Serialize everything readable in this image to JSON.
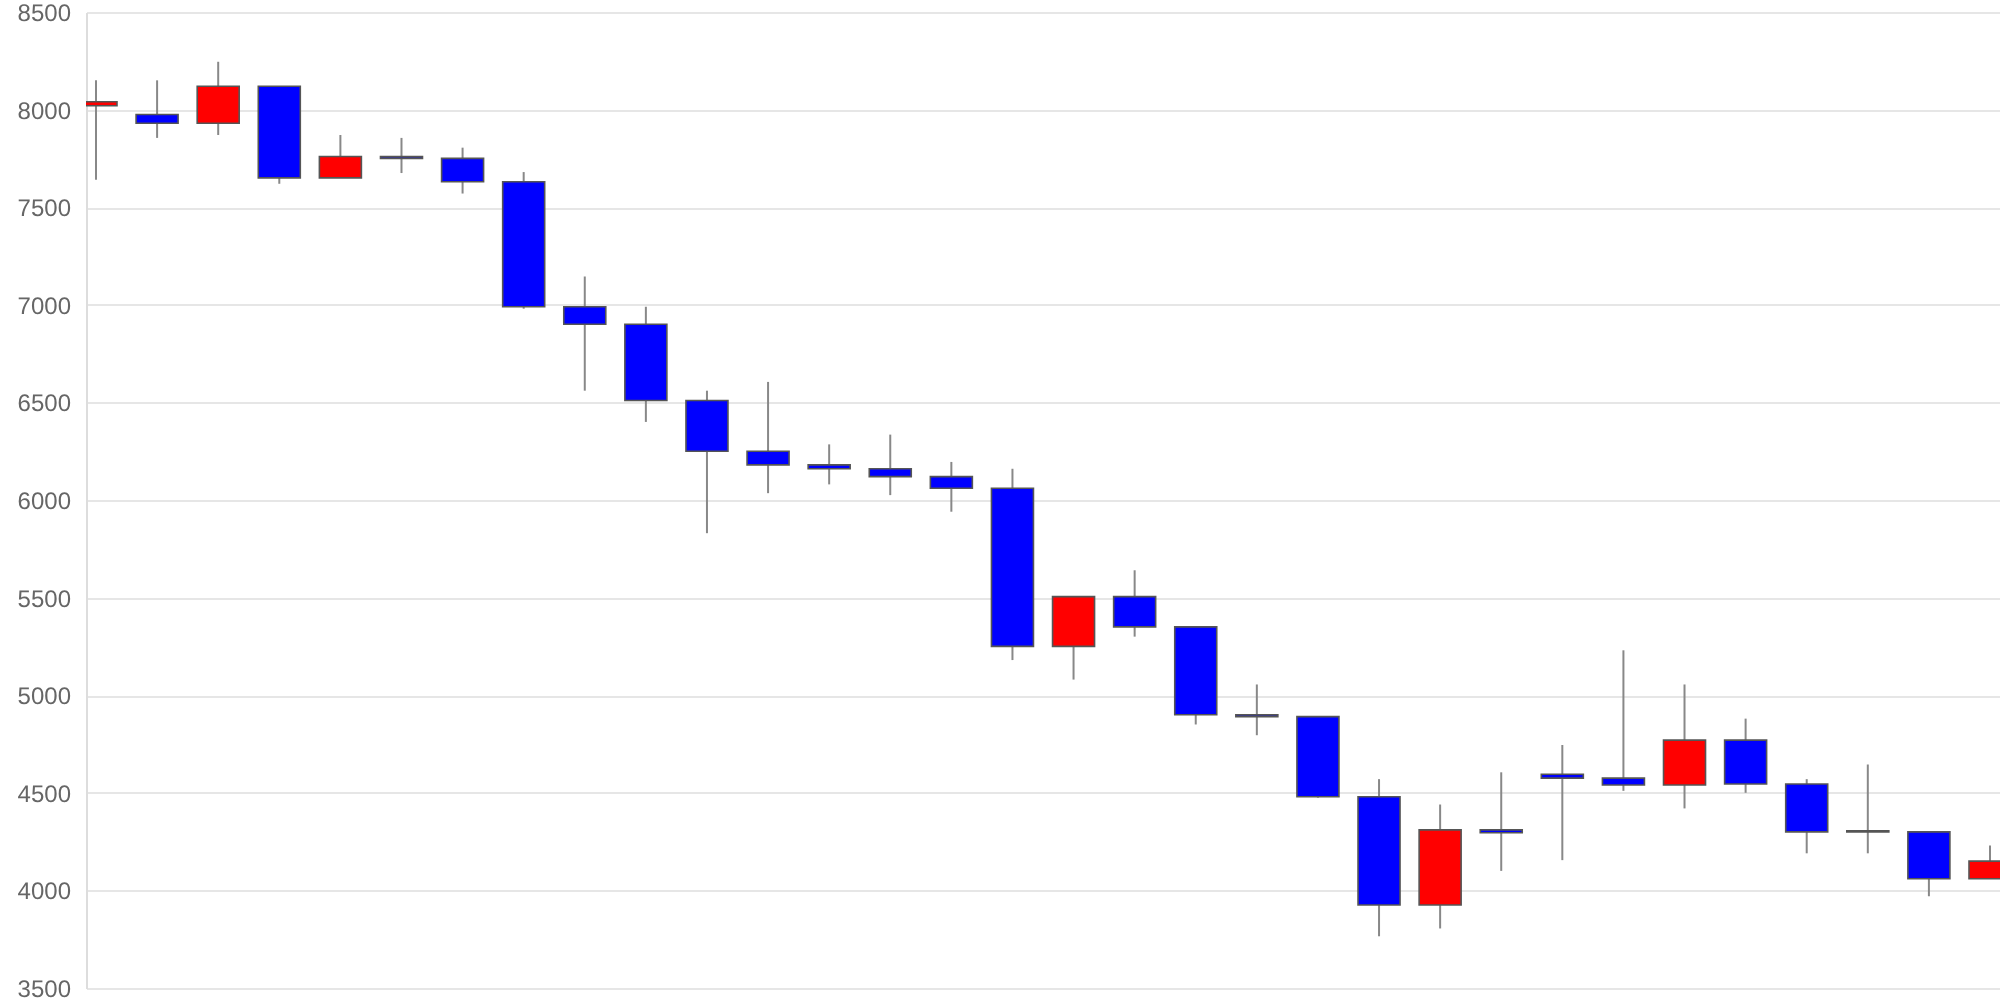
{
  "chart_data": {
    "type": "candlestick",
    "categories": [
      null,
      null,
      null,
      null,
      null,
      null,
      null,
      null,
      null,
      null,
      null,
      null,
      null,
      null,
      null,
      null,
      null,
      null,
      null,
      null,
      null,
      null,
      null,
      null,
      null,
      null,
      null,
      null,
      null,
      null,
      null,
      null
    ],
    "ohlc": [
      [
        8020,
        8150,
        7640,
        8040
      ],
      [
        7975,
        8150,
        7855,
        7930
      ],
      [
        7930,
        8245,
        7870,
        8120
      ],
      [
        8120,
        8120,
        7620,
        7650
      ],
      [
        7650,
        7870,
        7650,
        7760
      ],
      [
        7760,
        7855,
        7675,
        7750
      ],
      [
        7750,
        7805,
        7570,
        7630
      ],
      [
        7630,
        7680,
        6980,
        6990
      ],
      [
        6990,
        7145,
        6560,
        6900
      ],
      [
        6900,
        6990,
        6400,
        6510
      ],
      [
        6510,
        6560,
        5830,
        6250
      ],
      [
        6250,
        6605,
        6035,
        6180
      ],
      [
        6180,
        6285,
        6080,
        6160
      ],
      [
        6160,
        6335,
        6025,
        6120
      ],
      [
        6120,
        6195,
        5940,
        6060
      ],
      [
        6060,
        6160,
        5180,
        5250
      ],
      [
        5250,
        5505,
        5080,
        5505
      ],
      [
        5505,
        5640,
        5300,
        5350
      ],
      [
        5350,
        5350,
        4850,
        4900
      ],
      [
        4900,
        5055,
        4795,
        4890
      ],
      [
        4890,
        4890,
        4475,
        4480
      ],
      [
        4480,
        4570,
        3765,
        3925
      ],
      [
        3925,
        4440,
        3805,
        4310
      ],
      [
        4310,
        4605,
        4100,
        4295
      ],
      [
        4595,
        4745,
        4155,
        4575
      ],
      [
        4575,
        5230,
        4510,
        4540
      ],
      [
        4540,
        5055,
        4420,
        4770
      ],
      [
        4770,
        4880,
        4500,
        4545
      ],
      [
        4545,
        4570,
        4190,
        4300
      ],
      [
        4305,
        4645,
        4190,
        4300
      ],
      [
        4300,
        4300,
        3970,
        4060
      ],
      [
        4060,
        4230,
        4060,
        4150
      ]
    ],
    "colors": [
      "#ff0000",
      "#0000ff",
      "#ff0000",
      "#0000ff",
      "#ff0000",
      "#0000ff",
      "#0000ff",
      "#0000ff",
      "#0000ff",
      "#0000ff",
      "#0000ff",
      "#0000ff",
      "#0000ff",
      "#0000ff",
      "#0000ff",
      "#0000ff",
      "#ff0000",
      "#0000ff",
      "#0000ff",
      "#0000ff",
      "#0000ff",
      "#0000ff",
      "#ff0000",
      "#0000ff",
      "#0000ff",
      "#0000ff",
      "#ff0000",
      "#0000ff",
      "#0000ff",
      "#0000ff",
      "#0000ff",
      "#ff0000"
    ],
    "ylim": [
      3500,
      8500
    ],
    "yticks": [
      3500,
      4000,
      4500,
      5000,
      5500,
      6000,
      6500,
      7000,
      7500,
      8000,
      8500
    ],
    "grid": "y",
    "tick_labels": "y"
  }
}
